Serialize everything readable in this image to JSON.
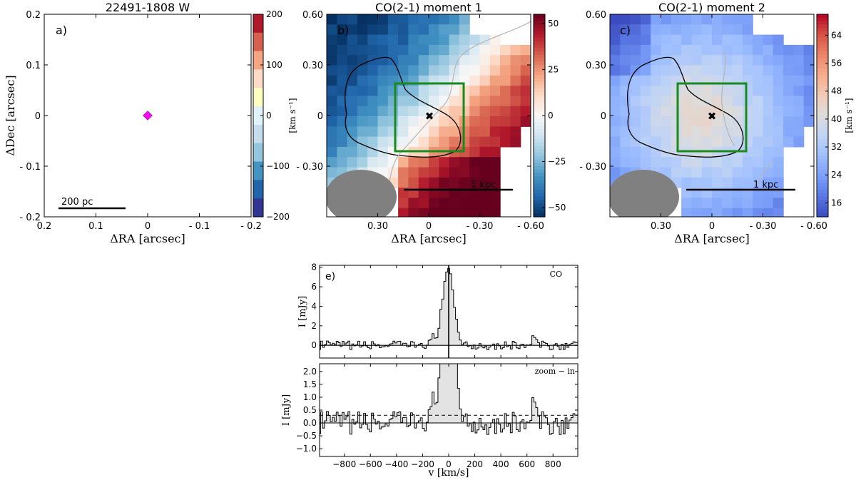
{
  "colors": {
    "green_box": "#1a8a1a",
    "gray_beam": "#808080",
    "magenta": "#ff00ff",
    "spectrum_fill": "#e3e3e3"
  },
  "chart_data": [
    {
      "type": "map",
      "panel": "a)",
      "title": "22491-1808 W",
      "xlabel": "ΔRA [arcsec]",
      "ylabel": "ΔDec [arcsec]",
      "xlim": [
        0.2,
        -0.2
      ],
      "ylim": [
        -0.2,
        0.2
      ],
      "xticks": [
        "0.2",
        "0.1",
        "0",
        "- 0.1",
        "- 0.2"
      ],
      "xtick_values": [
        0.2,
        0.1,
        0,
        -0.1,
        -0.2
      ],
      "yticks": [
        "0.2",
        "0.1",
        "0",
        "- 0.1",
        "- 0.2"
      ],
      "ytick_values": [
        0.2,
        0.1,
        0,
        -0.1,
        -0.2
      ],
      "marker": {
        "symbol": "diamond",
        "x": 0,
        "y": 0
      },
      "scalebar": {
        "label": "200 pc"
      },
      "colorbar": {
        "ticks": [
          "200",
          "100",
          "0",
          "−100",
          "−200"
        ],
        "tick_values": [
          200,
          100,
          0,
          -100,
          -200
        ],
        "range": [
          -200,
          200
        ],
        "levels": [
          "#b2182b",
          "#d6604d",
          "#f4a582",
          "#fddbc7",
          "#ffffbf",
          "#e0f3f8",
          "#c5dcec",
          "#92c5de",
          "#4393c3",
          "#2166ac",
          "#313695"
        ]
      }
    },
    {
      "type": "map",
      "panel": "b)",
      "title": "CO(2-1) moment 1",
      "xlabel": "ΔRA [arcsec]",
      "xlim": [
        0.6,
        -0.6
      ],
      "ylim": [
        -0.6,
        0.6
      ],
      "xticks": [
        "0.30",
        "0",
        "- 0.30",
        "- 0.60"
      ],
      "xtick_values": [
        0.3,
        0,
        -0.3,
        -0.6
      ],
      "yticks": [
        "0.60",
        "0.30",
        "0",
        "- 0.30"
      ],
      "ytick_values": [
        0.6,
        0.3,
        0,
        -0.3
      ],
      "box": {
        "x": [
          -0.2,
          0.2
        ],
        "y": [
          -0.2,
          0.2
        ]
      },
      "center_marker": {
        "x": 0,
        "y": 0
      },
      "scalebar": {
        "label": "1 kpc"
      },
      "colorbar": {
        "unit": "[km s⁻¹]",
        "ticks": [
          "50",
          "25",
          "0",
          "−25",
          "−50"
        ],
        "tick_values": [
          50,
          25,
          0,
          -25,
          -50
        ],
        "range": [
          -55,
          55
        ]
      }
    },
    {
      "type": "map",
      "panel": "c)",
      "title": "CO(2-1) moment 2",
      "xlabel": "ΔRA [arcsec]",
      "xlim": [
        0.6,
        -0.6
      ],
      "ylim": [
        -0.6,
        0.6
      ],
      "xticks": [
        "0.30",
        "0",
        "- 0.30",
        "- 0.60"
      ],
      "xtick_values": [
        0.3,
        0,
        -0.3,
        -0.6
      ],
      "yticks": [
        "0.60",
        "0.30",
        "0",
        "- 0.30"
      ],
      "ytick_values": [
        0.6,
        0.3,
        0,
        -0.3
      ],
      "box": {
        "x": [
          -0.2,
          0.2
        ],
        "y": [
          -0.2,
          0.2
        ]
      },
      "center_marker": {
        "x": 0,
        "y": 0
      },
      "scalebar": {
        "label": "1 kpc"
      },
      "colorbar": {
        "unit": "[km s⁻¹]",
        "ticks": [
          "64",
          "56",
          "48",
          "40",
          "32",
          "24",
          "16"
        ],
        "tick_values": [
          64,
          56,
          48,
          40,
          32,
          24,
          16
        ],
        "range": [
          12,
          70
        ]
      }
    },
    {
      "type": "step",
      "panel": "e)",
      "label": "CO",
      "ylabel": "I [mJy]",
      "xlim": [
        -990,
        990
      ],
      "ylim": [
        -1.3,
        8.2
      ],
      "yticks": [
        "8",
        "6",
        "4",
        "2",
        "0"
      ],
      "ytick_values": [
        8,
        6,
        4,
        2,
        0
      ],
      "vline": 0,
      "hline": 0
    },
    {
      "type": "step",
      "label": "zoom − in",
      "ylabel": "I [mJy]",
      "xlabel": "v [km/s]",
      "xlim": [
        -990,
        990
      ],
      "ylim": [
        -1.3,
        2.3
      ],
      "xticks": [
        "−800",
        "−600",
        "−400",
        "−200",
        "0",
        "200",
        "400",
        "600",
        "800"
      ],
      "xtick_values": [
        -800,
        -600,
        -400,
        -200,
        0,
        200,
        400,
        600,
        800
      ],
      "yticks": [
        "2.0",
        "1.5",
        "1.0",
        "0.5",
        "0.0",
        "−0.5",
        "−1.0"
      ],
      "ytick_values": [
        2.0,
        1.5,
        1.0,
        0.5,
        0.0,
        -0.5,
        -1.0
      ],
      "dashed_level": 0.3,
      "hline": 0
    }
  ]
}
